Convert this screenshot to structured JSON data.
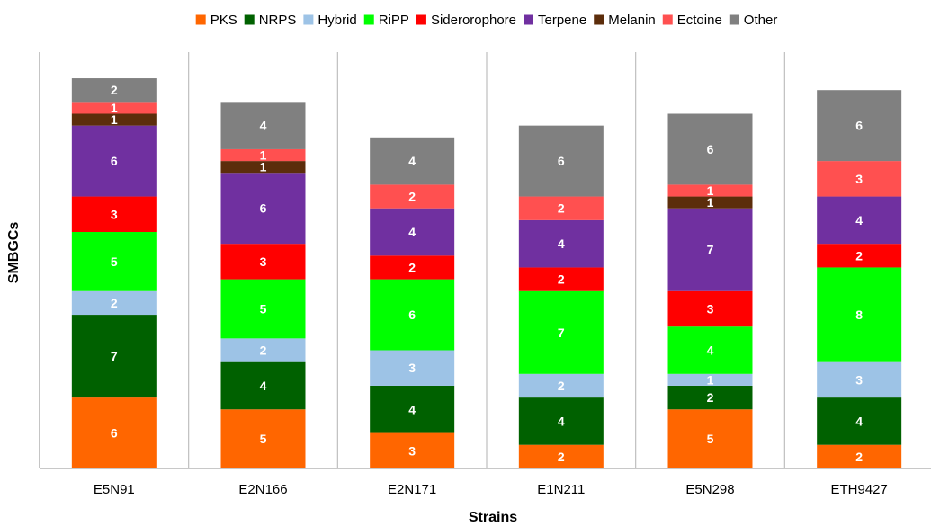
{
  "chart_data": {
    "type": "bar",
    "stacked": true,
    "categories": [
      "E5N91",
      "E2N166",
      "E2N171",
      "E1N211",
      "E5N298",
      "ETH9427"
    ],
    "series": [
      {
        "name": "PKS",
        "color": "#FF6600",
        "values": [
          6,
          5,
          3,
          2,
          5,
          2
        ]
      },
      {
        "name": "NRPS",
        "color": "#006100",
        "values": [
          7,
          4,
          4,
          4,
          2,
          4
        ]
      },
      {
        "name": "Hybrid",
        "color": "#9DC3E6",
        "values": [
          2,
          2,
          3,
          2,
          1,
          3
        ]
      },
      {
        "name": "RiPP",
        "color": "#00FF00",
        "values": [
          5,
          5,
          6,
          7,
          4,
          8
        ]
      },
      {
        "name": "Siderorophore",
        "color": "#FF0000",
        "values": [
          3,
          3,
          2,
          2,
          3,
          2
        ]
      },
      {
        "name": "Terpene",
        "color": "#7030A0",
        "values": [
          6,
          6,
          4,
          4,
          7,
          4
        ]
      },
      {
        "name": "Melanin",
        "color": "#5C2D0B",
        "values": [
          1,
          1,
          0,
          0,
          1,
          0
        ]
      },
      {
        "name": "Ectoine",
        "color": "#FF5050",
        "values": [
          1,
          1,
          2,
          2,
          1,
          3
        ]
      },
      {
        "name": "Other",
        "color": "#808080",
        "values": [
          2,
          4,
          4,
          6,
          6,
          6
        ]
      }
    ],
    "xlabel": "Strains",
    "ylabel": "SMBGCs",
    "ylim": [
      0,
      34
    ],
    "legend": "top",
    "grid": false
  }
}
